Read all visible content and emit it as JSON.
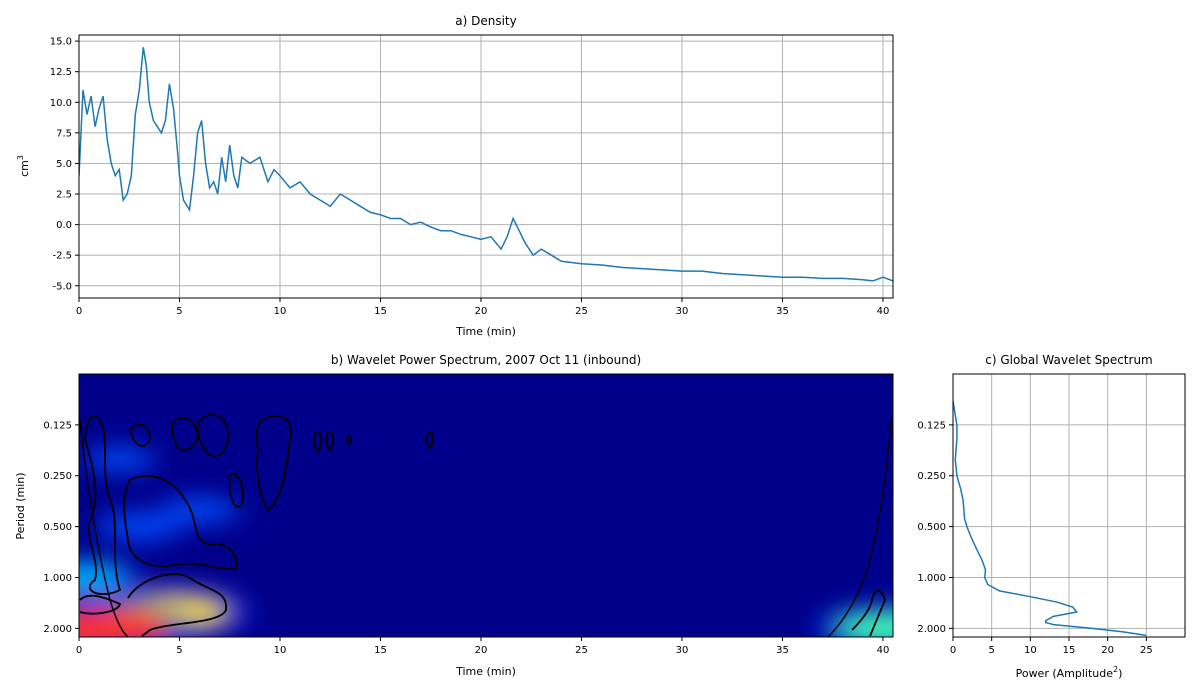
{
  "colors": {
    "line": "#1f77b4",
    "grid": "#b0b0b0",
    "axis": "#000000",
    "spectrum_background": "#00008b",
    "contour": "#000000"
  },
  "chart_data": [
    {
      "type": "line",
      "title": "a) Density",
      "xlabel": "Time (min)",
      "ylabel": "cm",
      "ylabel_superscript": "3",
      "xlim": [
        0,
        40.5
      ],
      "ylim": [
        -6,
        15.5
      ],
      "xticks": [
        "0",
        "5",
        "10",
        "15",
        "20",
        "25",
        "30",
        "35",
        "40"
      ],
      "yticks": [
        "-5.0",
        "-2.5",
        "0.0",
        "2.5",
        "5.0",
        "7.5",
        "10.0",
        "12.5",
        "15.0"
      ],
      "grid": true,
      "series": [
        {
          "x": [
            0,
            0.2,
            0.4,
            0.6,
            0.8,
            1.0,
            1.2,
            1.4,
            1.6,
            1.8,
            2.0,
            2.2,
            2.4,
            2.6,
            2.8,
            3.0,
            3.2,
            3.35,
            3.5,
            3.7,
            3.9,
            4.1,
            4.3,
            4.5,
            4.7,
            4.9,
            5.0,
            5.2,
            5.5,
            5.7,
            5.9,
            6.1,
            6.3,
            6.5,
            6.7,
            6.9,
            7.1,
            7.3,
            7.5,
            7.7,
            7.9,
            8.1,
            8.5,
            9.0,
            9.4,
            9.7,
            10.0,
            10.5,
            11.0,
            11.5,
            12.0,
            12.5,
            13.0,
            13.5,
            14.0,
            14.5,
            15.0,
            15.5,
            16.0,
            16.5,
            17.0,
            17.5,
            18.0,
            18.5,
            19.0,
            19.5,
            20.0,
            20.5,
            21.0,
            21.3,
            21.6,
            21.9,
            22.2,
            22.6,
            23.0,
            23.5,
            24.0,
            25.0,
            26.0,
            27.0,
            28.0,
            29.0,
            30.0,
            31.0,
            32.0,
            33.0,
            34.0,
            35.0,
            36.0,
            37.0,
            38.0,
            39.0,
            39.5,
            40.0,
            40.5
          ],
          "y": [
            4.0,
            11.0,
            9.0,
            10.5,
            8.0,
            9.5,
            10.5,
            7.0,
            5.0,
            4.0,
            4.5,
            2.0,
            2.5,
            4.0,
            9.0,
            11.0,
            14.5,
            13.0,
            10.0,
            8.5,
            8.0,
            7.5,
            8.5,
            11.5,
            9.5,
            6.0,
            4.0,
            2.0,
            1.2,
            4.0,
            7.5,
            8.5,
            5.0,
            3.0,
            3.5,
            2.5,
            5.5,
            3.5,
            6.5,
            4.0,
            3.0,
            5.5,
            5.0,
            5.5,
            3.5,
            4.5,
            4.0,
            3.0,
            3.5,
            2.5,
            2.0,
            1.5,
            2.5,
            2.0,
            1.5,
            1.0,
            0.8,
            0.5,
            0.5,
            0.0,
            0.2,
            -0.2,
            -0.5,
            -0.5,
            -0.8,
            -1.0,
            -1.2,
            -1.0,
            -2.0,
            -1.0,
            0.5,
            -0.5,
            -1.5,
            -2.5,
            -2.0,
            -2.5,
            -3.0,
            -3.2,
            -3.3,
            -3.5,
            -3.6,
            -3.7,
            -3.8,
            -3.8,
            -4.0,
            -4.1,
            -4.2,
            -4.3,
            -4.3,
            -4.4,
            -4.4,
            -4.5,
            -4.6,
            -4.3,
            -4.6
          ]
        }
      ]
    },
    {
      "type": "heatmap",
      "title": "b) Wavelet Power Spectrum, 2007 Oct 11 (inbound)",
      "xlabel": "Time (min)",
      "ylabel": "Period (min)",
      "xlim": [
        0,
        40.5
      ],
      "ylim": [
        0.0625,
        2.25
      ],
      "yscale": "log2",
      "xticks": [
        "0",
        "5",
        "10",
        "15",
        "20",
        "25",
        "30",
        "35",
        "40"
      ],
      "yticks": [
        "0.125",
        "0.250",
        "0.500",
        "1.000",
        "2.000"
      ],
      "hotspots": [
        {
          "time": 4.5,
          "period": 1.6,
          "level": 0.8
        },
        {
          "time": 1.0,
          "period": 2.0,
          "level": 1.0
        },
        {
          "time": 40.3,
          "period": 2.0,
          "level": 0.7
        },
        {
          "time": 0.3,
          "period": 1.0,
          "level": 0.45
        },
        {
          "time": 3.0,
          "period": 0.5,
          "level": 0.3
        },
        {
          "time": 6.0,
          "period": 0.4,
          "level": 0.25
        },
        {
          "time": 2.0,
          "period": 0.2,
          "level": 0.2
        }
      ],
      "cone_of_influence": true
    },
    {
      "type": "line",
      "title": "c) Global Wavelet Spectrum",
      "xlabel": "Power (Amplitude",
      "xlabel_superscript": "2",
      "xlabel_suffix": ")",
      "xlim": [
        0,
        30
      ],
      "ylim": [
        0.0625,
        2.25
      ],
      "yscale": "log2",
      "xticks": [
        "0",
        "5",
        "10",
        "15",
        "20",
        "25"
      ],
      "yticks": [
        "0.125",
        "0.250",
        "0.500",
        "1.000",
        "2.000"
      ],
      "grid": true,
      "series": [
        {
          "period": [
            0.09,
            0.11,
            0.125,
            0.15,
            0.2,
            0.25,
            0.3,
            0.35,
            0.45,
            0.5,
            0.6,
            0.7,
            0.8,
            0.9,
            1.0,
            1.1,
            1.2,
            1.3,
            1.4,
            1.5,
            1.6,
            1.7,
            1.8,
            1.85,
            1.9,
            2.0,
            2.1,
            2.2
          ],
          "power": [
            0.0,
            0.3,
            0.5,
            0.5,
            0.3,
            0.5,
            1.0,
            1.3,
            1.5,
            1.8,
            2.5,
            3.2,
            3.8,
            4.2,
            4.1,
            4.5,
            6.0,
            10.0,
            13.5,
            15.5,
            16.0,
            13.0,
            12.0,
            12.0,
            13.0,
            18.0,
            22.0,
            25.0
          ]
        }
      ]
    }
  ]
}
